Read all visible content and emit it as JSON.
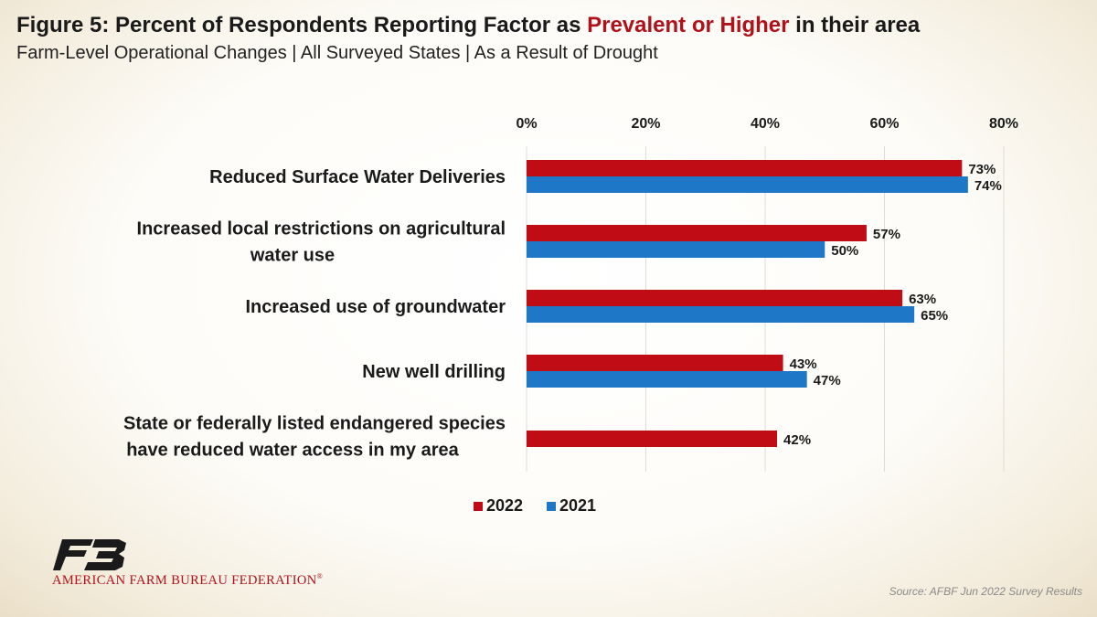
{
  "header": {
    "title_prefix": "Figure 5: Percent of Respondents Reporting Factor as ",
    "title_highlight": "Prevalent or Higher",
    "title_suffix": " in their area",
    "subtitle": "Farm-Level Operational Changes | All Surveyed States | As a Result of Drought"
  },
  "chart_data": {
    "type": "bar",
    "orientation": "horizontal",
    "title": "Figure 5: Percent of Respondents Reporting Factor as Prevalent or Higher in their area",
    "subtitle": "Farm-Level Operational Changes | All Surveyed States | As a Result of Drought",
    "categories": [
      [
        "Reduced Surface Water Deliveries"
      ],
      [
        "Increased local restrictions on agricultural",
        "water use"
      ],
      [
        "Increased use of groundwater"
      ],
      [
        "New well drilling"
      ],
      [
        "State or federally listed endangered species",
        "have reduced water access in my area"
      ]
    ],
    "series": [
      {
        "name": "2022",
        "color": "#c00d15",
        "values": [
          73,
          57,
          63,
          43,
          42
        ],
        "labels": [
          "73%",
          "57%",
          "63%",
          "43%",
          "42%"
        ]
      },
      {
        "name": "2021",
        "color": "#1f77c8",
        "values": [
          74,
          50,
          65,
          47,
          null
        ],
        "labels": [
          "74%",
          "50%",
          "65%",
          "47%",
          ""
        ]
      }
    ],
    "xlim": [
      0,
      80
    ],
    "xticks": [
      0,
      20,
      40,
      60,
      80
    ],
    "xtick_labels": [
      "0%",
      "20%",
      "40%",
      "60%",
      "80%"
    ],
    "xaxis_position": "top",
    "grid": true,
    "legend": [
      "2022",
      "2021"
    ],
    "legend_position": "bottom-center"
  },
  "footer": {
    "org_name": "AMERICAN FARM BUREAU FEDERATION",
    "org_mark": "®",
    "source": "Source: AFBF Jun 2022 Survey Results"
  }
}
